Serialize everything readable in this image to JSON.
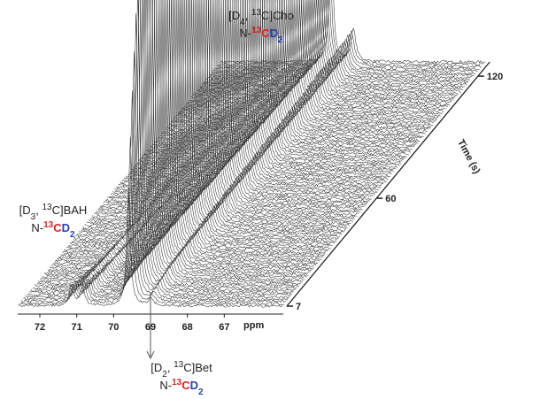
{
  "chart_data": {
    "type": "waterfall",
    "xlabel": "ppm",
    "ylabel": "Time (s)",
    "xlim": [
      72.6,
      65.4
    ],
    "xticks": [
      72,
      71,
      70,
      69,
      68,
      67
    ],
    "ylim": [
      7,
      127
    ],
    "yticks": [
      7,
      60,
      120
    ],
    "annotations": [
      {
        "name": [
          "[D",
          "4",
          ", ",
          "13",
          "C]Cho"
        ],
        "group": [
          "N-",
          "13",
          "C",
          "D",
          "2"
        ],
        "ppm": 69.6
      },
      {
        "name": [
          "[D",
          "3",
          ", ",
          "13",
          "C]BAH"
        ],
        "group": [
          "N-",
          "13",
          "C",
          "D",
          "2"
        ],
        "ppm": 71.0
      },
      {
        "name": [
          "[D",
          "2",
          ", ",
          "13",
          "C]Bet"
        ],
        "group": [
          "N-",
          "13",
          "C",
          "D",
          "2"
        ],
        "ppm": 69.0
      }
    ]
  }
}
